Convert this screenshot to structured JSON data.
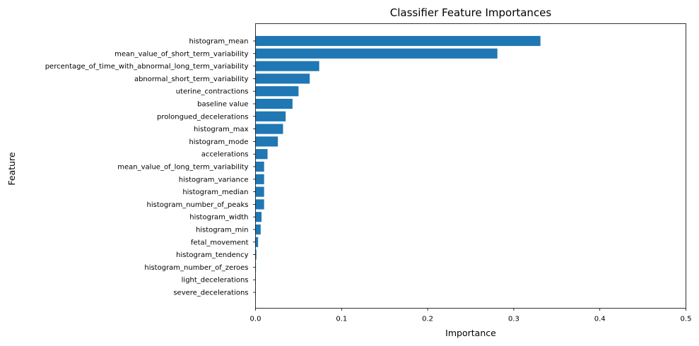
{
  "chart_data": {
    "type": "bar",
    "orientation": "horizontal",
    "title": "Classifier Feature Importances",
    "xlabel": "Importance",
    "ylabel": "Feature",
    "xlim": [
      0,
      0.5
    ],
    "xticks": [
      "0.0",
      "0.1",
      "0.2",
      "0.3",
      "0.4",
      "0.5"
    ],
    "grid": false,
    "legend": "none",
    "bar_color": "#1f77b4",
    "categories": [
      "histogram_mean",
      "mean_value_of_short_term_variability",
      "percentage_of_time_with_abnormal_long_term_variability",
      "abnormal_short_term_variability",
      "uterine_contractions",
      "baseline value",
      "prolongued_decelerations",
      "histogram_max",
      "histogram_mode",
      "accelerations",
      "mean_value_of_long_term_variability",
      "histogram_variance",
      "histogram_median",
      "histogram_number_of_peaks",
      "histogram_width",
      "histogram_min",
      "fetal_movement",
      "histogram_tendency",
      "histogram_number_of_zeroes",
      "light_decelerations",
      "severe_decelerations"
    ],
    "values": [
      0.331,
      0.281,
      0.074,
      0.063,
      0.05,
      0.043,
      0.035,
      0.032,
      0.026,
      0.014,
      0.01,
      0.01,
      0.01,
      0.01,
      0.007,
      0.006,
      0.003,
      0.001,
      0.0005,
      0.0003,
      0.0002
    ]
  }
}
